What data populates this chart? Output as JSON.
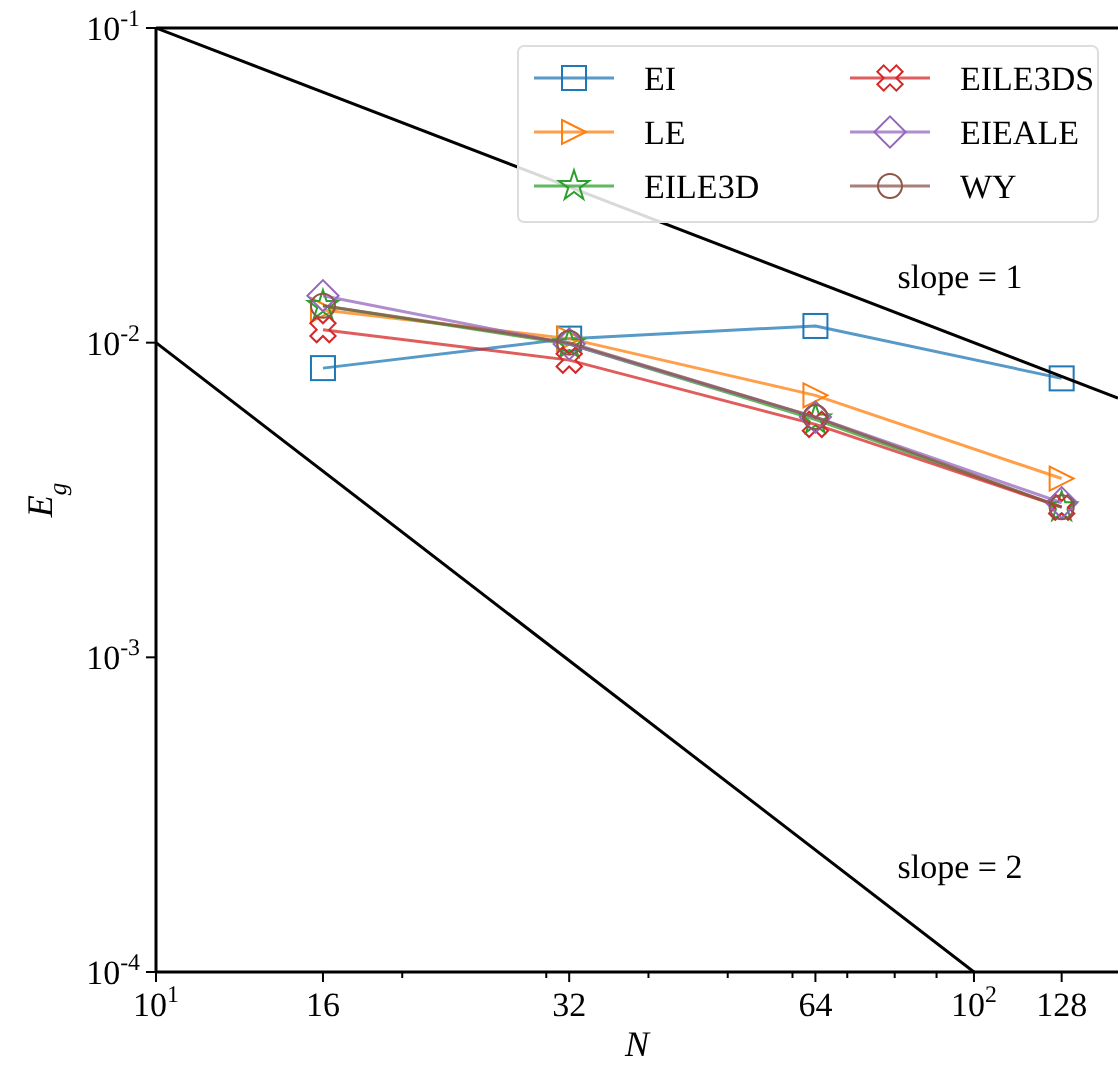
{
  "chart_data": {
    "type": "line",
    "xlabel": "N",
    "ylabel": "E$_{g}$",
    "log": "xy",
    "legend": "top right",
    "grid": false,
    "xlim": [
      10,
      150
    ],
    "ylim": [
      0.0001,
      0.1
    ],
    "xticks": [
      {
        "value": 10,
        "label": "10$^{1}$"
      },
      16,
      {
        "value": 20,
        "label": null
      },
      {
        "value": 30,
        "label": null
      },
      32,
      {
        "value": 40,
        "label": null
      },
      {
        "value": 50,
        "label": null
      },
      {
        "value": 60,
        "label": null
      },
      64,
      {
        "value": 70,
        "label": null
      },
      {
        "value": 80,
        "label": null
      },
      {
        "value": 90,
        "label": null
      },
      {
        "value": 100,
        "label": "10$^{2}$"
      },
      128
    ],
    "yticks": [
      {
        "value": 0.0001,
        "label": "10$^{-4}$"
      },
      {
        "value": 0.001,
        "label": "10$^{-3}$"
      },
      {
        "value": 0.01,
        "label": "10$^{-2}$"
      },
      {
        "value": 0.1,
        "label": "10$^{-1}$"
      }
    ],
    "series": [
      {
        "name": "EI",
        "color": "#1f77b4",
        "marker": "square",
        "x": [
          16,
          32,
          64,
          128
        ],
        "values": [
          0.0083,
          0.0103,
          0.0113,
          0.0077
        ]
      },
      {
        "name": "LE",
        "color": "#ff7f0e",
        "marker": "triangle",
        "x": [
          16,
          32,
          64,
          128
        ],
        "values": [
          0.0127,
          0.0103,
          0.0068,
          0.0037
        ]
      },
      {
        "name": "EILE3D",
        "color": "#2ca02c",
        "marker": "star",
        "x": [
          16,
          32,
          64,
          128
        ],
        "values": [
          0.0131,
          0.0099,
          0.0057,
          0.003
        ]
      },
      {
        "name": "EILE3DS",
        "color": "#d62728",
        "marker": "cross",
        "x": [
          16,
          32,
          64,
          128
        ],
        "values": [
          0.011,
          0.0088,
          0.0055,
          0.003
        ]
      },
      {
        "name": "EIEALE",
        "color": "#9467bd",
        "marker": "diamond",
        "x": [
          16,
          32,
          64,
          128
        ],
        "values": [
          0.0141,
          0.0099,
          0.0058,
          0.0031
        ]
      },
      {
        "name": "WY",
        "color": "#8c564b",
        "marker": "circle",
        "x": [
          16,
          32,
          64,
          128
        ],
        "values": [
          0.0131,
          0.01,
          0.0058,
          0.003
        ]
      },
      {
        "color": "#000000",
        "marker": "none",
        "x": [
          10,
          150
        ],
        "values": [
          0.1,
          0.00667
        ]
      },
      {
        "color": "#000000",
        "marker": "none",
        "x": [
          10,
          100
        ],
        "values": [
          0.01,
          0.0001
        ]
      }
    ],
    "annotations": [
      "slope = 1",
      "slope = 2"
    ]
  }
}
